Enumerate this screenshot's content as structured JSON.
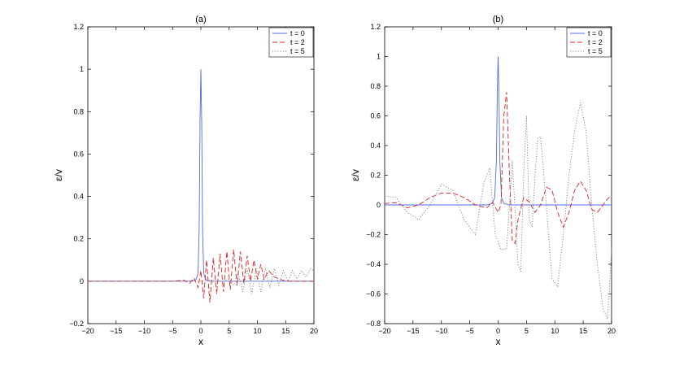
{
  "chart_data": [
    {
      "type": "line",
      "title": "(a)",
      "xlabel": "x",
      "ylabel": "ε/v",
      "xlim": [
        -20,
        20
      ],
      "ylim": [
        -0.2,
        1.2
      ],
      "xticks": [
        -20,
        -15,
        -10,
        -5,
        0,
        5,
        10,
        15,
        20
      ],
      "yticks": [
        -0.2,
        0,
        0.2,
        0.4,
        0.6,
        0.8,
        1,
        1.2
      ],
      "xtick_labels": [
        "−20",
        "−15",
        "−10",
        "−5",
        "0",
        "5",
        "10",
        "15",
        "20"
      ],
      "ytick_labels": [
        "−0.2",
        "0",
        "0.2",
        "0.4",
        "0.6",
        "0.8",
        "1",
        "1.2"
      ],
      "grid": false,
      "legend_position": "top-right",
      "series": [
        {
          "name": "t = 0",
          "color": "#4f6ce0",
          "style": "solid",
          "x": [
            -20,
            -2,
            -1,
            -0.8,
            -0.5,
            -0.3,
            -0.15,
            0,
            0.15,
            0.3,
            0.5,
            0.8,
            1,
            2,
            20
          ],
          "y": [
            0,
            0,
            0.005,
            0.01,
            0.04,
            0.25,
            0.75,
            1.0,
            0.75,
            0.25,
            0.04,
            0.01,
            0.005,
            0,
            0
          ]
        },
        {
          "name": "t = 2",
          "color": "#e02020",
          "style": "dashed",
          "x": [
            -20,
            -5,
            -3,
            -2,
            -1.2,
            -0.5,
            0,
            0.5,
            1.0,
            1.6,
            2.2,
            2.8,
            3.4,
            4.0,
            4.6,
            5.2,
            5.8,
            6.4,
            7.0,
            7.6,
            8.2,
            8.8,
            9.4,
            10.0,
            10.6,
            11.2,
            12,
            13,
            14,
            15,
            17,
            20
          ],
          "y": [
            0,
            0,
            0.005,
            -0.01,
            0.015,
            -0.03,
            0.05,
            -0.08,
            0.1,
            -0.1,
            0.11,
            -0.06,
            0.13,
            -0.05,
            0.14,
            -0.04,
            0.15,
            -0.02,
            0.14,
            -0.01,
            0.12,
            0.0,
            0.1,
            0.01,
            0.08,
            0.01,
            0.05,
            0.02,
            0.01,
            0,
            0,
            0
          ]
        },
        {
          "name": "t = 5",
          "color": "#808080",
          "style": "dotted",
          "x": [
            -20,
            4,
            5,
            5.8,
            6.6,
            7.4,
            8.2,
            9.0,
            9.8,
            10.6,
            11.4,
            12.2,
            13.0,
            13.8,
            14.6,
            15.4,
            16.2,
            17.0,
            17.8,
            18.6,
            19.4,
            20
          ],
          "y": [
            0,
            0,
            0.01,
            -0.02,
            0.04,
            -0.05,
            0.06,
            -0.06,
            0.06,
            -0.05,
            0.06,
            -0.03,
            0.06,
            -0.02,
            0.05,
            0.0,
            0.05,
            0.01,
            0.05,
            0.02,
            0.06,
            0.05
          ]
        }
      ]
    },
    {
      "type": "line",
      "title": "(b)",
      "xlabel": "x",
      "ylabel": "ε/v",
      "xlim": [
        -20,
        20
      ],
      "ylim": [
        -0.8,
        1.2
      ],
      "xticks": [
        -20,
        -15,
        -10,
        -5,
        0,
        5,
        10,
        15,
        20
      ],
      "yticks": [
        -0.8,
        -0.6,
        -0.4,
        -0.2,
        0,
        0.2,
        0.4,
        0.6,
        0.8,
        1,
        1.2
      ],
      "xtick_labels": [
        "−20",
        "−15",
        "−10",
        "−5",
        "0",
        "5",
        "10",
        "15",
        "20"
      ],
      "ytick_labels": [
        "−0.8",
        "−0.6",
        "−0.4",
        "−0.2",
        "0",
        "0.2",
        "0.4",
        "0.6",
        "0.8",
        "1",
        "1.2"
      ],
      "grid": false,
      "legend_position": "top-right",
      "series": [
        {
          "name": "t = 0",
          "color": "#4f6ce0",
          "style": "solid",
          "x": [
            -20,
            -2,
            -1,
            -0.6,
            -0.3,
            -0.15,
            0,
            0.15,
            0.3,
            0.6,
            1,
            2,
            20
          ],
          "y": [
            0,
            0,
            0.01,
            0.05,
            0.3,
            0.75,
            1.0,
            0.75,
            0.3,
            0.05,
            0.01,
            0,
            0
          ]
        },
        {
          "name": "t = 2",
          "color": "#e02020",
          "style": "dashed",
          "x": [
            -20,
            -18,
            -16,
            -14,
            -12,
            -10,
            -8,
            -6,
            -4,
            -2,
            -1,
            0,
            0.5,
            1.0,
            1.5,
            2.0,
            2.5,
            3.0,
            3.5,
            4.5,
            5.5,
            6.5,
            7.5,
            8.5,
            9.5,
            10.5,
            11.5,
            12.5,
            13.5,
            14.5,
            15.5,
            16.5,
            17.5,
            18.5,
            19.5,
            20
          ],
          "y": [
            0.01,
            0.015,
            -0.02,
            0.0,
            0.05,
            0.08,
            0.08,
            0.05,
            0.0,
            -0.02,
            0.02,
            -0.05,
            0.0,
            0.6,
            0.76,
            0.2,
            -0.24,
            -0.26,
            -0.1,
            0.05,
            0.02,
            -0.05,
            0.0,
            0.12,
            0.1,
            -0.05,
            -0.15,
            -0.05,
            0.1,
            0.16,
            0.1,
            -0.03,
            -0.05,
            0.0,
            0.05,
            0.05
          ]
        },
        {
          "name": "t = 5",
          "color": "#808080",
          "style": "dotted",
          "x": [
            -20,
            -18,
            -16,
            -14,
            -12,
            -10,
            -8,
            -6,
            -4,
            -2.5,
            -1.5,
            -0.5,
            0.5,
            1.5,
            2.5,
            3.5,
            4.0,
            4.5,
            5.0,
            5.5,
            6.0,
            6.5,
            7.0,
            7.5,
            8.5,
            9.5,
            10.5,
            11.5,
            12.5,
            13.5,
            14.5,
            15.5,
            16.5,
            17.5,
            18.5,
            19.3,
            20
          ],
          "y": [
            0.06,
            0.05,
            -0.05,
            -0.1,
            0.0,
            0.14,
            0.1,
            -0.1,
            -0.2,
            0.15,
            0.25,
            -0.2,
            -0.3,
            -0.3,
            0.3,
            -0.4,
            -0.45,
            0.2,
            0.6,
            -0.1,
            -0.15,
            0.2,
            0.45,
            0.46,
            0.0,
            -0.5,
            -0.55,
            -0.2,
            0.2,
            0.5,
            0.69,
            0.5,
            0.0,
            -0.4,
            -0.7,
            -0.77,
            -0.3
          ]
        }
      ]
    }
  ]
}
